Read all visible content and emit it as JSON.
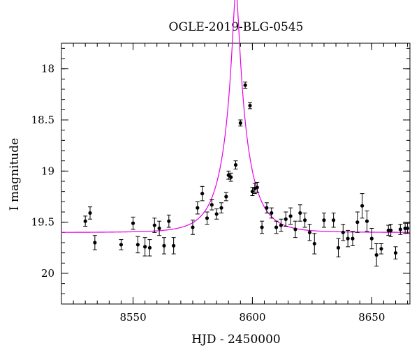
{
  "chart_data": {
    "type": "scatter",
    "title": "OGLE-2019-BLG-0545",
    "xlabel": "HJD - 2450000",
    "ylabel": "I magnitude",
    "xlim": [
      8520,
      8666
    ],
    "ylim": [
      20.3,
      17.75
    ],
    "y_inverted": true,
    "x_ticks": [
      8550,
      8600,
      8650
    ],
    "y_ticks": [
      18,
      18.5,
      19,
      19.5,
      20
    ],
    "x_tick_labels": [
      "8550",
      "8600",
      "8650"
    ],
    "y_tick_labels": [
      "18",
      "18.5",
      "19",
      "19.5",
      "20"
    ],
    "grid": false,
    "legend": "none",
    "colors": {
      "model": "#e600e6",
      "points": "#000000"
    },
    "series": [
      {
        "type": "scatter-errorbar",
        "x": [
          8530,
          8532,
          8534,
          8545,
          8550,
          8552,
          8555,
          8557,
          8559,
          8561,
          8563,
          8565,
          8567,
          8575,
          8577,
          8579,
          8581,
          8583,
          8585,
          8587,
          8589,
          8590,
          8591,
          8593,
          8595,
          8597,
          8599,
          8600,
          8601,
          8602,
          8604,
          8606,
          8608,
          8610,
          8612,
          8614,
          8616,
          8618,
          8620,
          8622,
          8624,
          8626,
          8630,
          8634,
          8636,
          8638,
          8640,
          8642,
          8644,
          8646,
          8648,
          8650,
          8652,
          8654,
          8657,
          8658,
          8660,
          8662,
          8664,
          8665
        ],
        "y": [
          19.49,
          19.41,
          19.7,
          19.72,
          19.51,
          19.72,
          19.74,
          19.75,
          19.53,
          19.56,
          19.73,
          19.49,
          19.73,
          19.55,
          19.36,
          19.22,
          19.46,
          19.33,
          19.42,
          19.36,
          19.25,
          19.04,
          19.06,
          18.94,
          18.53,
          18.16,
          18.36,
          19.2,
          19.17,
          19.16,
          19.55,
          19.36,
          19.41,
          19.55,
          19.53,
          19.47,
          19.44,
          19.57,
          19.41,
          19.48,
          19.6,
          19.71,
          19.48,
          19.48,
          19.75,
          19.6,
          19.66,
          19.66,
          19.5,
          19.34,
          19.49,
          19.66,
          19.82,
          19.76,
          19.58,
          19.58,
          19.8,
          19.57,
          19.56,
          19.56
        ],
        "yerr": [
          0.05,
          0.06,
          0.07,
          0.05,
          0.06,
          0.08,
          0.09,
          0.08,
          0.07,
          0.07,
          0.08,
          0.06,
          0.08,
          0.07,
          0.06,
          0.07,
          0.06,
          0.05,
          0.05,
          0.05,
          0.04,
          0.04,
          0.04,
          0.04,
          0.03,
          0.03,
          0.03,
          0.04,
          0.05,
          0.05,
          0.06,
          0.05,
          0.05,
          0.06,
          0.06,
          0.07,
          0.08,
          0.08,
          0.08,
          0.07,
          0.08,
          0.1,
          0.07,
          0.07,
          0.09,
          0.08,
          0.08,
          0.07,
          0.1,
          0.12,
          0.1,
          0.1,
          0.11,
          0.05,
          0.05,
          0.06,
          0.06,
          0.05,
          0.05,
          0.05
        ]
      },
      {
        "type": "line",
        "model": "point-lens",
        "baseline_mag": 19.6,
        "t0": 8593.1,
        "u0": 0.115,
        "tE": 10.5
      }
    ]
  }
}
